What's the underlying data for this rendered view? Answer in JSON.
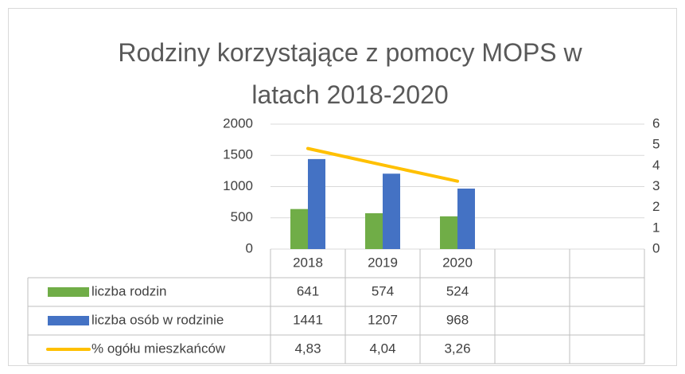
{
  "chart_data": {
    "type": "bar",
    "title": "Rodziny korzystające z pomocy MOPS w latach 2018-2020",
    "categories": [
      "2018",
      "2019",
      "2020",
      null,
      null
    ],
    "series": [
      {
        "name": "liczba rodzin",
        "color": "#70ad47",
        "values": [
          641,
          574,
          524,
          null,
          null
        ]
      },
      {
        "name": "liczba osób w rodzinie",
        "color": "#4472c4",
        "values": [
          1441,
          1207,
          968,
          null,
          null
        ]
      },
      {
        "name": "% ogółu mieszkańców",
        "color": "#ffc000",
        "type": "line",
        "axis": "y2",
        "values": [
          4.83,
          4.04,
          3.26,
          null,
          null
        ],
        "value_labels": [
          "4,83",
          "4,04",
          "3,26",
          null,
          null
        ]
      }
    ],
    "ylim": [
      0,
      2000
    ],
    "yticks": [
      0,
      500,
      1000,
      1500,
      2000
    ],
    "y2lim": [
      0,
      6
    ],
    "y2ticks": [
      0,
      1,
      2,
      3,
      4,
      5,
      6
    ],
    "grid": true,
    "data_table": true
  }
}
